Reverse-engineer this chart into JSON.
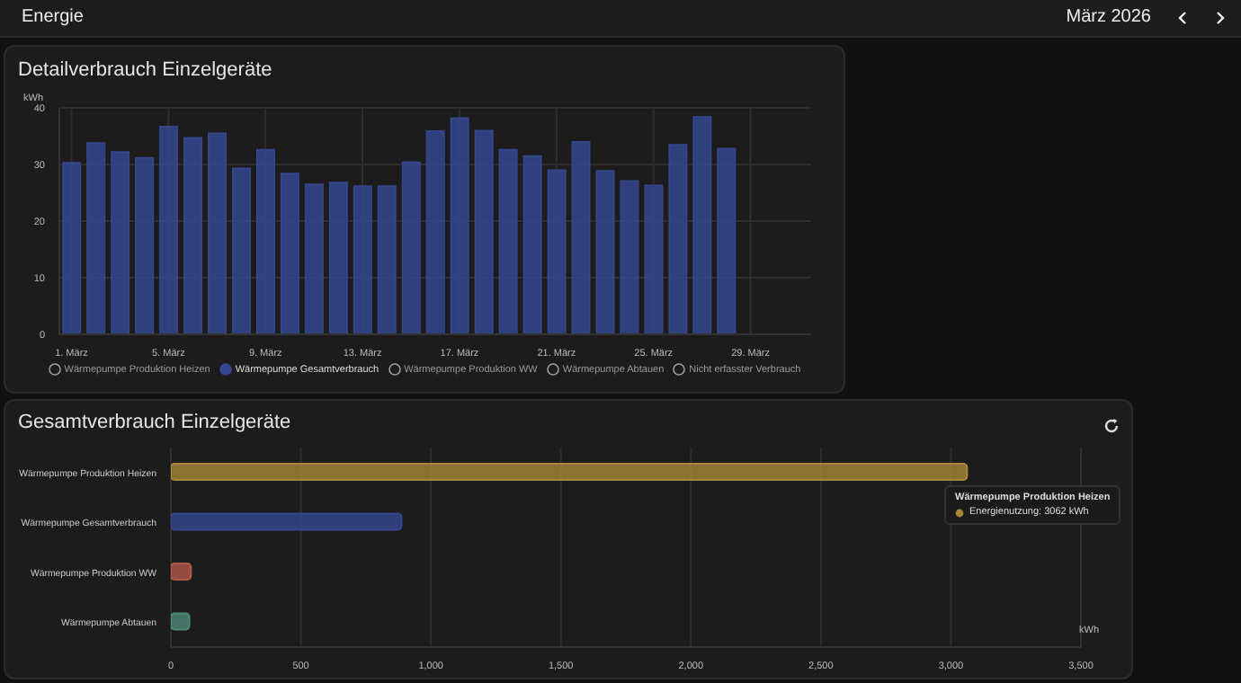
{
  "chart_data": [
    {
      "type": "bar",
      "title": "Detailverbrauch Einzelgeräte",
      "ylabel": "kWh",
      "annotations": [
        "Energie",
        "März 2026"
      ],
      "categories": [
        "1. März",
        null,
        null,
        null,
        "5. März",
        null,
        null,
        null,
        "9. März",
        null,
        null,
        null,
        "13. März",
        null,
        null,
        null,
        "17. März",
        null,
        null,
        null,
        "21. März",
        null,
        null,
        null,
        "25. März",
        null,
        null,
        null,
        "29. März",
        null,
        null
      ],
      "series": [
        {
          "name": "Wärmepumpe Produktion Heizen",
          "color": "#9e9e9e",
          "values": [
            null,
            null,
            null,
            null,
            null,
            null,
            null,
            null,
            null,
            null,
            null,
            null,
            null,
            null,
            null,
            null,
            null,
            null,
            null,
            null,
            null,
            null,
            null,
            null,
            null,
            null,
            null,
            null,
            null,
            null,
            null
          ]
        },
        {
          "name": "Wärmepumpe Gesamtverbrauch",
          "color": "#34478f",
          "values": [
            30.3,
            33.8,
            32.2,
            31.2,
            36.7,
            34.7,
            35.5,
            29.3,
            32.6,
            28.4,
            26.5,
            26.8,
            26.2,
            26.2,
            30.4,
            35.9,
            38.2,
            36.0,
            32.6,
            31.5,
            29.0,
            34.0,
            28.9,
            27.1,
            26.3,
            33.5,
            38.4,
            32.8,
            null,
            null,
            null
          ]
        },
        {
          "name": "Wärmepumpe Produktion WW",
          "color": "#9e9e9e",
          "values": [
            null,
            null,
            null,
            null,
            null,
            null,
            null,
            null,
            null,
            null,
            null,
            null,
            null,
            null,
            null,
            null,
            null,
            null,
            null,
            null,
            null,
            null,
            null,
            null,
            null,
            null,
            null,
            null,
            null,
            null,
            null
          ]
        },
        {
          "name": "Wärmepumpe Abtauen",
          "color": "#9e9e9e",
          "values": [
            null,
            null,
            null,
            null,
            null,
            null,
            null,
            null,
            null,
            null,
            null,
            null,
            null,
            null,
            null,
            null,
            null,
            null,
            null,
            null,
            null,
            null,
            null,
            null,
            null,
            null,
            null,
            null,
            null,
            null,
            null
          ]
        },
        {
          "name": "Nicht erfasster Verbrauch",
          "color": "#9e9e9e",
          "values": [
            null,
            null,
            null,
            null,
            null,
            null,
            null,
            null,
            null,
            null,
            null,
            null,
            null,
            null,
            null,
            null,
            null,
            null,
            null,
            null,
            null,
            null,
            null,
            null,
            null,
            null,
            null,
            null,
            null,
            null,
            null
          ]
        }
      ],
      "ylim": [
        0,
        40
      ],
      "yticks": [
        0,
        10,
        20,
        30,
        40
      ],
      "grid": true,
      "legend": "bottom"
    },
    {
      "type": "bar",
      "orientation": "horizontal",
      "title": "Gesamtverbrauch Einzelgeräte",
      "xlabel": "kWh",
      "annotations": [
        "Wärmepumpe Produktion Heizen",
        "Energienutzung: 3062 kWh"
      ],
      "categories": [
        "Wärmepumpe Produktion Heizen",
        "Wärmepumpe Gesamtverbrauch",
        "Wärmepumpe Produktion WW",
        "Wärmepumpe Abtauen"
      ],
      "values": [
        3062,
        887,
        77,
        71
      ],
      "colors": [
        "#a8883a",
        "#34478f",
        "#b3574a",
        "#4f8a78"
      ],
      "xlim": [
        0,
        3500
      ],
      "xticks": [
        0,
        500,
        {
          "value": 1000,
          "label": "1,000"
        },
        {
          "value": 1500,
          "label": "1,500"
        },
        {
          "value": 2000,
          "label": "2,000"
        },
        {
          "value": 2500,
          "label": "2,500"
        },
        {
          "value": 3000,
          "label": "3,000"
        },
        {
          "value": 3500,
          "label": "3,500"
        }
      ],
      "grid": "x"
    }
  ]
}
